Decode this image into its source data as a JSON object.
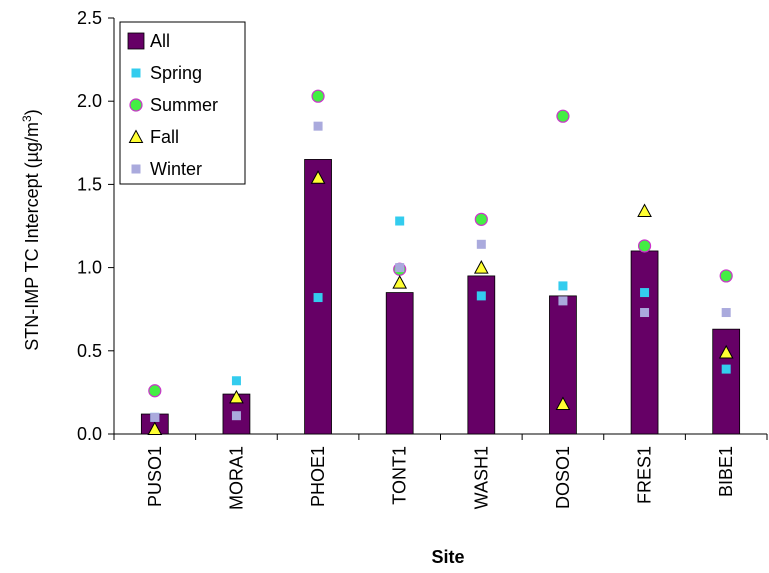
{
  "chart_data": {
    "type": "bar",
    "xlabel": "Site",
    "ylabel": "STN-IMP TC Intercept (µg/m",
    "ylabel_sup": "3",
    "ylabel_end": ")",
    "ylim": [
      0,
      2.5
    ],
    "yticks": [
      "0.0",
      "0.5",
      "1.0",
      "1.5",
      "2.0",
      "2.5"
    ],
    "ytick_values": [
      0,
      0.5,
      1.0,
      1.5,
      2.0,
      2.5
    ],
    "categories": [
      "PUSO1",
      "MORA1",
      "PHOE1",
      "TONT1",
      "WASH1",
      "DOSO1",
      "FRES1",
      "BIBE1"
    ],
    "grid": false,
    "legend_position": "top-left",
    "series": [
      {
        "name": "All",
        "mark": "bar",
        "color": "#660066",
        "values": [
          0.12,
          0.24,
          1.65,
          0.85,
          0.95,
          0.83,
          1.1,
          0.63
        ]
      },
      {
        "name": "Spring",
        "mark": "square",
        "color": "#33ccee",
        "values": [
          0.1,
          0.32,
          0.82,
          1.28,
          0.83,
          0.89,
          0.85,
          0.39
        ]
      },
      {
        "name": "Summer",
        "mark": "circle",
        "color": "#44ee44",
        "values": [
          0.26,
          null,
          2.03,
          0.99,
          1.29,
          1.91,
          1.13,
          0.95
        ]
      },
      {
        "name": "Fall",
        "mark": "triangle",
        "color": "#ffff33",
        "values": [
          0.03,
          0.22,
          1.54,
          0.91,
          1.0,
          0.18,
          1.34,
          0.49
        ]
      },
      {
        "name": "Winter",
        "mark": "square",
        "color": "#aaaadd",
        "values": [
          0.1,
          0.11,
          1.85,
          1.0,
          1.14,
          0.8,
          0.73,
          0.73
        ]
      }
    ]
  }
}
